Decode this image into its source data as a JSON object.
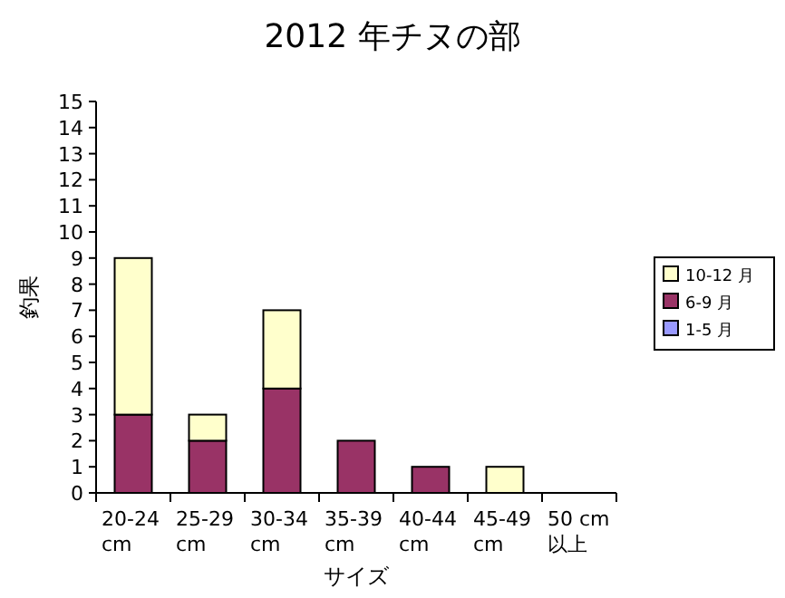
{
  "chart_data": {
    "type": "bar",
    "stacked": true,
    "title": "2012 年チヌの部",
    "xlabel": "サイズ",
    "ylabel": "釣果",
    "categories": [
      "20-24 cm",
      "25-29 cm",
      "30-34 cm",
      "35-39 cm",
      "40-44 cm",
      "45-49 cm",
      "50 cm 以上"
    ],
    "series": [
      {
        "name": "1-5 月",
        "color": "#9999ff",
        "values": [
          0,
          0,
          0,
          0,
          0,
          0,
          0
        ]
      },
      {
        "name": "6-9 月",
        "color": "#993366",
        "values": [
          3,
          2,
          4,
          2,
          1,
          0,
          0
        ]
      },
      {
        "name": "10-12 月",
        "color": "#ffffcc",
        "values": [
          6,
          1,
          3,
          0,
          0,
          1,
          0
        ]
      }
    ],
    "ylim": [
      0,
      15
    ],
    "yticks": [
      0,
      1,
      2,
      3,
      4,
      5,
      6,
      7,
      8,
      9,
      10,
      11,
      12,
      13,
      14,
      15
    ],
    "legend": "right",
    "grid": false
  }
}
